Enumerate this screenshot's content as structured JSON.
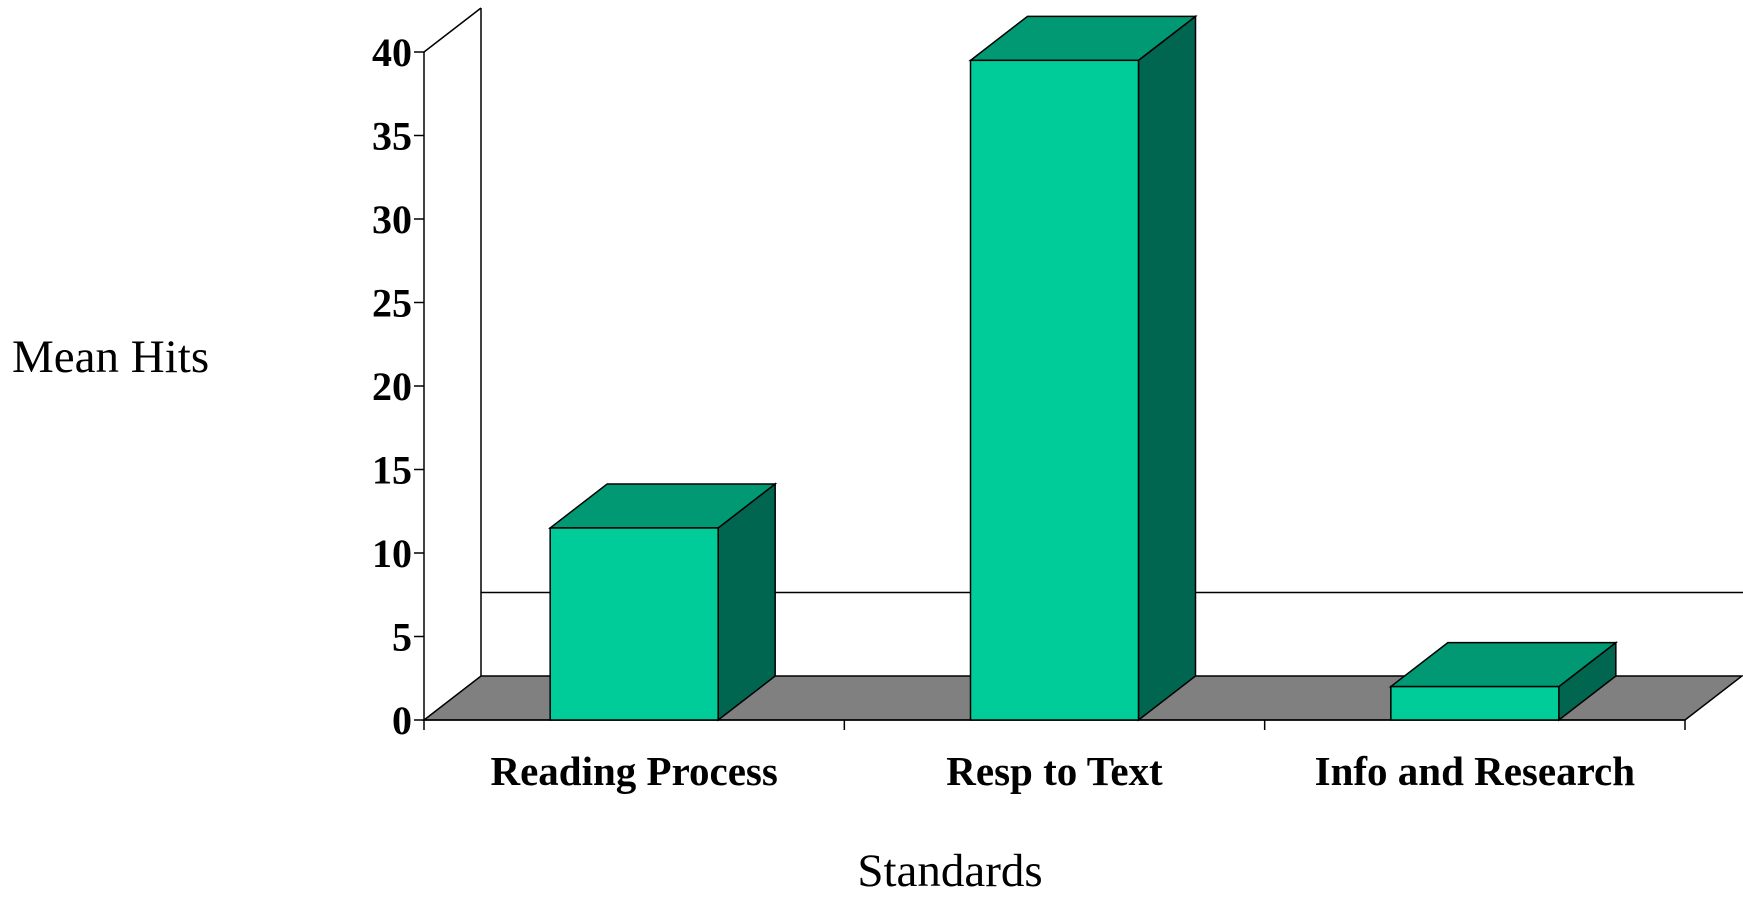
{
  "chart_data": {
    "type": "bar",
    "categories": [
      "Reading Process",
      "Resp to Text",
      "Info and Research"
    ],
    "series": [
      {
        "values": [
          11.5,
          39.5,
          2
        ]
      }
    ],
    "title": "",
    "xlabel": "Standards",
    "ylabel": "Mean Hits",
    "ylim": [
      0,
      40
    ],
    "yticks": [
      0,
      5,
      10,
      15,
      20,
      25,
      30,
      35,
      40
    ],
    "three_d": true,
    "grid": "single gridline at 5",
    "legend": "none",
    "colors": {
      "bar_front": "#00cc99",
      "bar_top": "#009973",
      "bar_side": "#006650",
      "floor": "#808080",
      "line": "#000000"
    }
  }
}
